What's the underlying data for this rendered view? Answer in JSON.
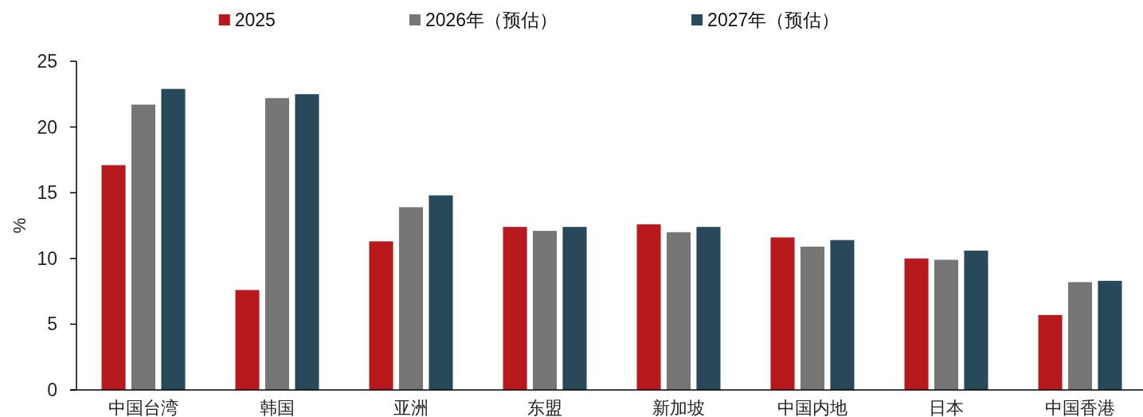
{
  "chart_data": {
    "type": "bar",
    "categories": [
      "中国台湾",
      "韩国",
      "亚洲",
      "东盟",
      "新加坡",
      "中国内地",
      "日本",
      "中国香港"
    ],
    "series": [
      {
        "name": "2025",
        "color": "#b8191c",
        "values": [
          17.1,
          7.6,
          11.3,
          12.4,
          12.6,
          11.6,
          10.0,
          5.7
        ]
      },
      {
        "name": "2026年（预估）",
        "color": "#767676",
        "values": [
          21.7,
          22.2,
          13.9,
          12.1,
          12.0,
          10.9,
          9.9,
          8.2
        ]
      },
      {
        "name": "2027年（预估）",
        "color": "#27495a",
        "values": [
          22.9,
          22.5,
          14.8,
          12.4,
          12.4,
          11.4,
          10.6,
          8.3
        ]
      }
    ],
    "ylabel": "%",
    "ylim": [
      0,
      25
    ],
    "yticks": [
      0,
      5,
      10,
      15,
      20,
      25
    ],
    "grid": false,
    "legend": "top"
  }
}
